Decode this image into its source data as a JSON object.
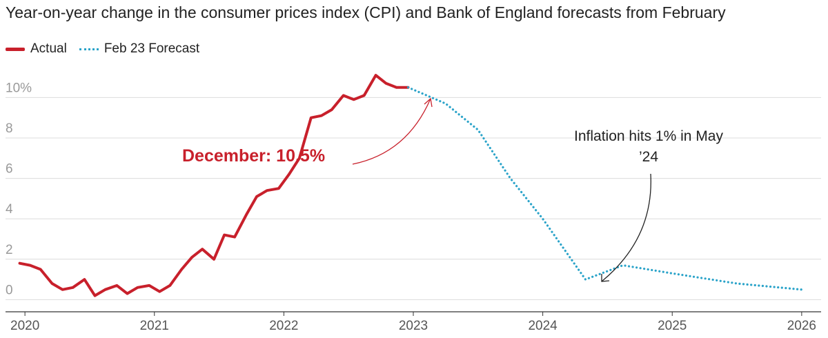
{
  "title": "Year-on-year change in the consumer prices index (CPI) and Bank of England forecasts from February",
  "colors": {
    "actual": "#c8202b",
    "forecast": "#2aa3c9",
    "grid": "#dcdcdc",
    "axis_text": "#999999",
    "annotation": "#222222"
  },
  "legend": {
    "actual_label": "Actual",
    "forecast_label": "Feb 23 Forecast",
    "placement": "top-left"
  },
  "annotations": {
    "december": "December: 10.5%",
    "may_line1": "Inflation hits 1% in May",
    "may_line2": "’24"
  },
  "chart_data": {
    "type": "line",
    "title": "Year-on-year change in the consumer prices index (CPI) and Bank of England forecasts from February",
    "xlabel": "",
    "ylabel": "",
    "xlim": [
      2019.85,
      2026.15
    ],
    "ylim": [
      -0.6,
      10.9
    ],
    "grid": true,
    "y_ticks": [
      {
        "value": 0,
        "label": "0"
      },
      {
        "value": 2,
        "label": "2"
      },
      {
        "value": 4,
        "label": "4"
      },
      {
        "value": 6,
        "label": "6"
      },
      {
        "value": 8,
        "label": "8"
      },
      {
        "value": 10,
        "label": "10%"
      }
    ],
    "x_ticks": [
      {
        "value": 2020,
        "label": "2020"
      },
      {
        "value": 2021,
        "label": "2021"
      },
      {
        "value": 2022,
        "label": "2022"
      },
      {
        "value": 2023,
        "label": "2023"
      },
      {
        "value": 2024,
        "label": "2024"
      },
      {
        "value": 2025,
        "label": "2025"
      },
      {
        "value": 2026,
        "label": "2026"
      }
    ],
    "series": [
      {
        "name": "Actual",
        "style": "solid",
        "x": [
          2019.96,
          2020.04,
          2020.12,
          2020.21,
          2020.29,
          2020.37,
          2020.46,
          2020.54,
          2020.62,
          2020.71,
          2020.79,
          2020.87,
          2020.96,
          2021.04,
          2021.12,
          2021.21,
          2021.29,
          2021.37,
          2021.46,
          2021.54,
          2021.62,
          2021.71,
          2021.79,
          2021.87,
          2021.96,
          2022.04,
          2022.12,
          2022.21,
          2022.29,
          2022.37,
          2022.46,
          2022.54,
          2022.62,
          2022.71,
          2022.79,
          2022.87,
          2022.96
        ],
        "y": [
          1.8,
          1.7,
          1.5,
          0.8,
          0.5,
          0.6,
          1.0,
          0.2,
          0.5,
          0.7,
          0.3,
          0.6,
          0.7,
          0.4,
          0.7,
          1.5,
          2.1,
          2.5,
          2.0,
          3.2,
          3.1,
          4.2,
          5.1,
          5.4,
          5.5,
          6.2,
          7.0,
          9.0,
          9.1,
          9.4,
          10.1,
          9.9,
          10.1,
          11.1,
          10.7,
          10.5,
          10.5
        ]
      },
      {
        "name": "Feb 23 Forecast",
        "style": "dotted",
        "x": [
          2022.96,
          2023.25,
          2023.5,
          2023.75,
          2024.0,
          2024.33,
          2024.62,
          2025.0,
          2025.5,
          2026.0
        ],
        "y": [
          10.5,
          9.7,
          8.4,
          6.0,
          4.0,
          1.0,
          1.7,
          1.3,
          0.8,
          0.5
        ]
      }
    ]
  }
}
